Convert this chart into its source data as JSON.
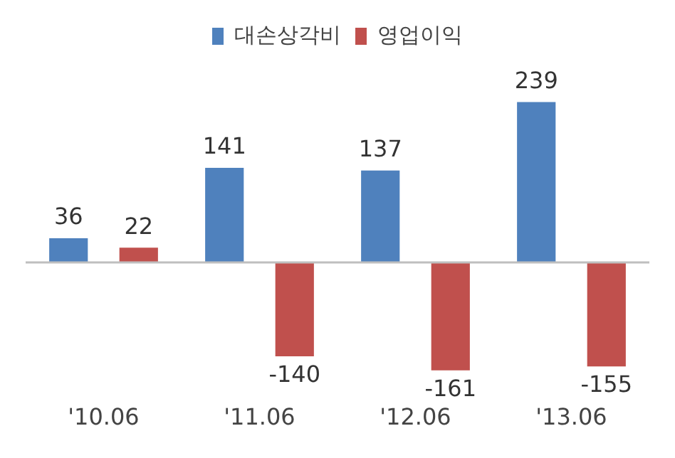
{
  "chart_data": {
    "type": "bar",
    "categories": [
      "'10.06",
      "'11.06",
      "'12.06",
      "'13.06"
    ],
    "series": [
      {
        "name": "대손상각비",
        "color": "#4f81bd",
        "values": [
          36,
          141,
          137,
          239
        ]
      },
      {
        "name": "영업이익",
        "color": "#c0504d",
        "values": [
          22,
          -140,
          -161,
          -155
        ]
      }
    ],
    "data_labels": true,
    "legend": "top",
    "grid": false
  }
}
